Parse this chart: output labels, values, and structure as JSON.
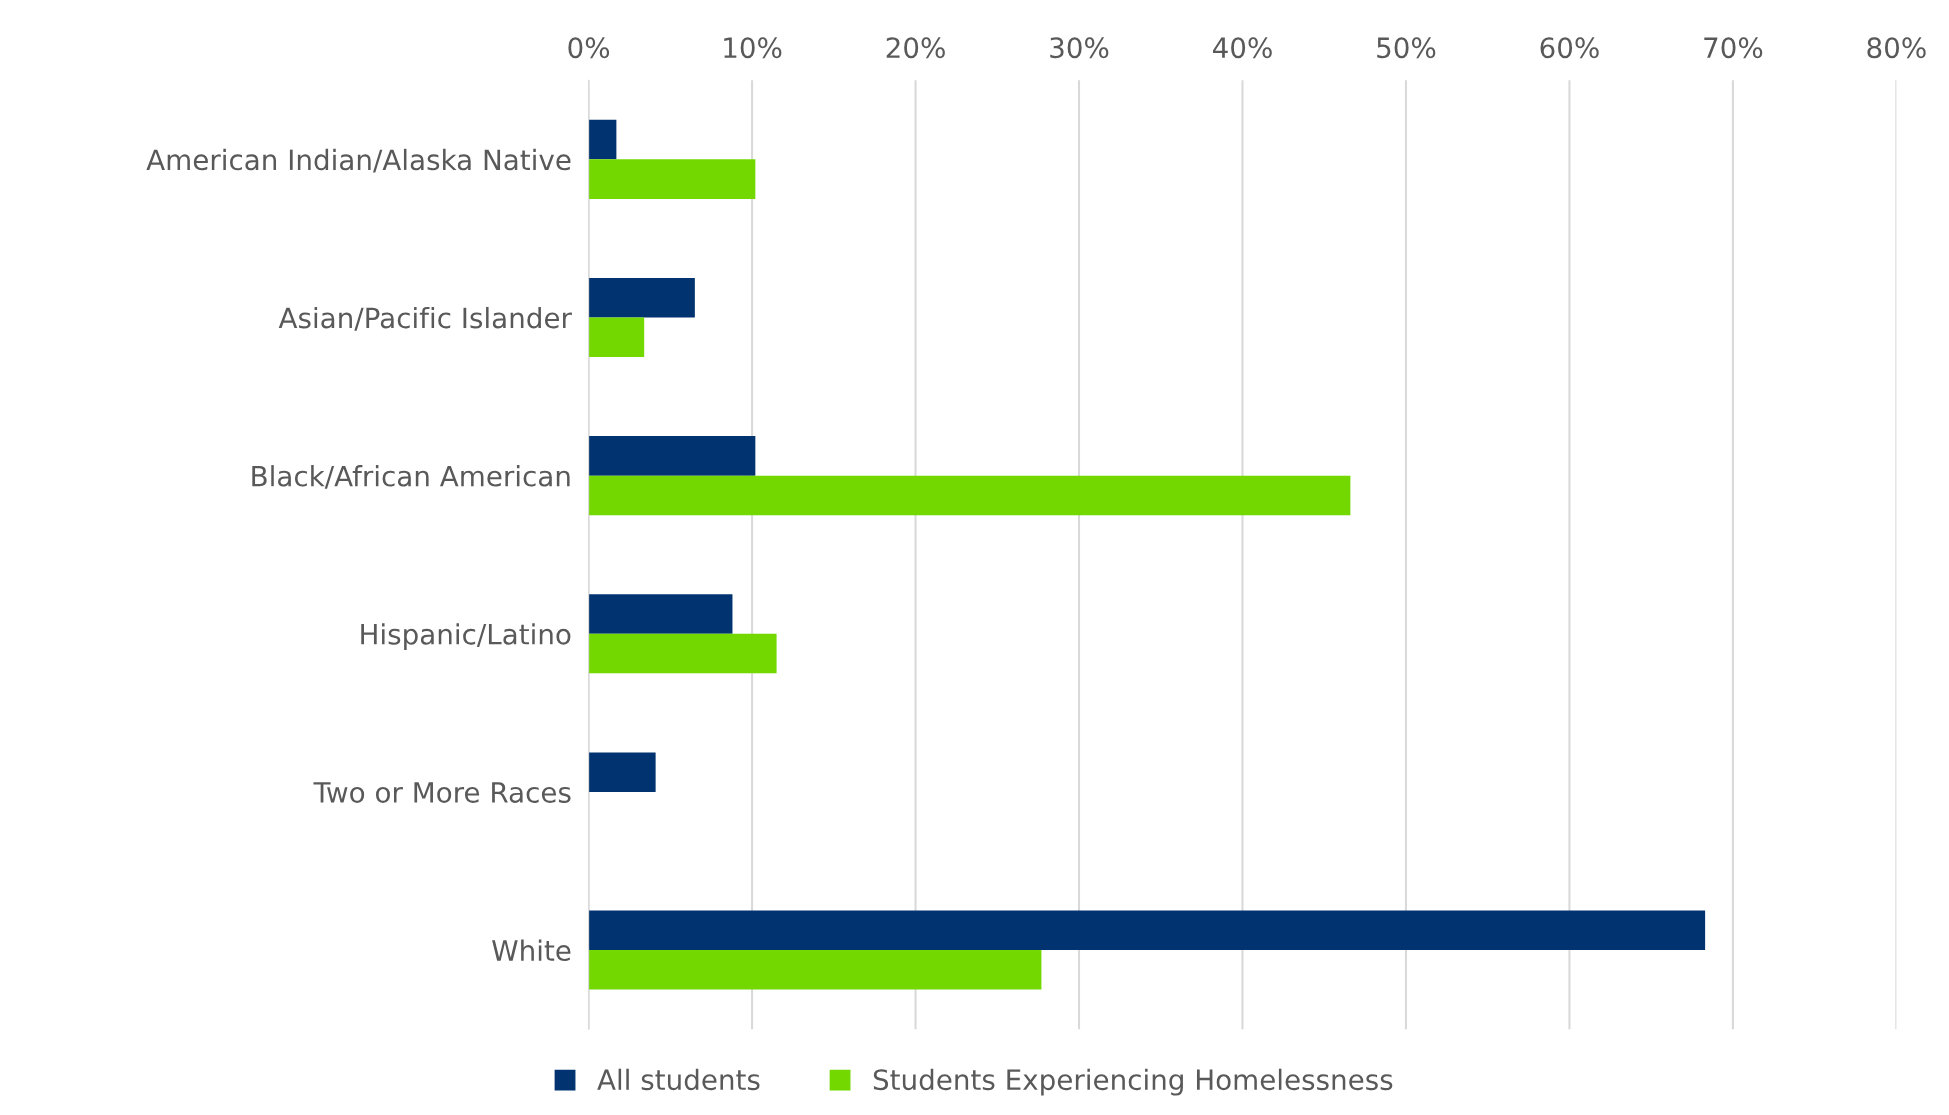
{
  "chart_data": {
    "type": "bar",
    "orientation": "horizontal",
    "categories": [
      "American Indian/Alaska Native",
      "Asian/Pacific Islander",
      "Black/African American",
      "Hispanic/Latino",
      "Two or More Races",
      "White"
    ],
    "series": [
      {
        "name": "All students",
        "color": "#003370",
        "values": [
          1.7,
          6.5,
          10.2,
          8.8,
          4.1,
          68.3
        ]
      },
      {
        "name": "Students Experiencing Homelessness",
        "color": "#72d800",
        "values": [
          10.2,
          3.4,
          46.6,
          11.5,
          null,
          27.7
        ]
      }
    ],
    "xlim": [
      0,
      80
    ],
    "xticks": [
      {
        "value": 0,
        "label": "0%"
      },
      {
        "value": 10,
        "label": "10%"
      },
      {
        "value": 20,
        "label": "20%"
      },
      {
        "value": 30,
        "label": "30%"
      },
      {
        "value": 40,
        "label": "40%"
      },
      {
        "value": 50,
        "label": "50%"
      },
      {
        "value": 60,
        "label": "60%"
      },
      {
        "value": 70,
        "label": "70%"
      },
      {
        "value": 80,
        "label": "80%"
      }
    ],
    "grid": "x",
    "legend": "bottom"
  }
}
